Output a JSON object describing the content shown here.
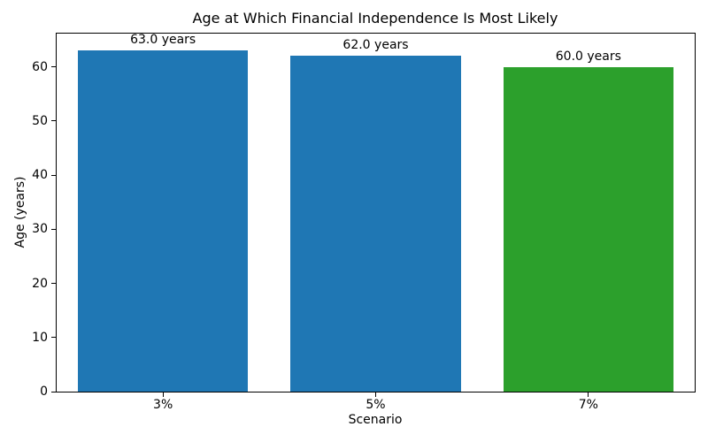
{
  "chart_data": {
    "type": "bar",
    "title": "Age at Which Financial Independence Is Most Likely",
    "xlabel": "Scenario",
    "ylabel": "Age (years)",
    "categories": [
      "3%",
      "5%",
      "7%"
    ],
    "values": [
      63.0,
      62.0,
      60.0
    ],
    "bar_labels": [
      "63.0 years",
      "62.0 years",
      "60.0 years"
    ],
    "bar_colors": [
      "#1f77b4",
      "#1f77b4",
      "#2ca02c"
    ],
    "ylim": [
      0,
      66.15
    ],
    "yticks": [
      0,
      10,
      20,
      30,
      40,
      50,
      60
    ],
    "bar_width_fraction": 0.8,
    "grid": false,
    "legend_position": "none",
    "spine_color": "#000000",
    "background_color": "#ffffff"
  }
}
